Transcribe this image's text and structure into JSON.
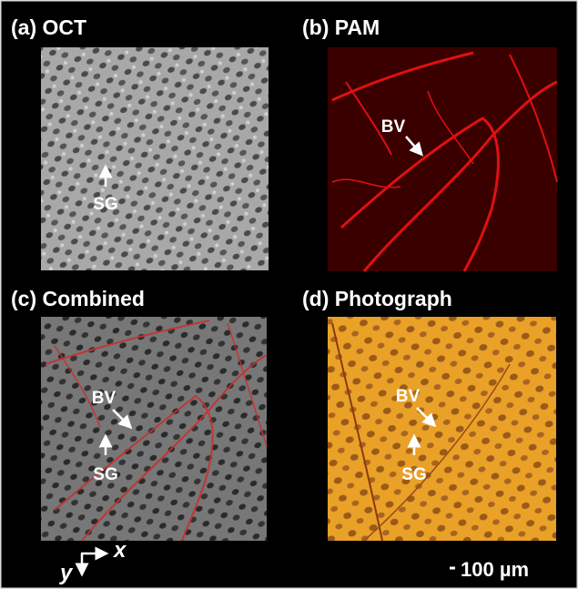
{
  "panels": [
    {
      "label": "(a) OCT",
      "annotations": [
        "SG"
      ]
    },
    {
      "label": "(b) PAM",
      "annotations": [
        "BV"
      ]
    },
    {
      "label": "(c) Combined",
      "annotations": [
        "BV",
        "SG"
      ]
    },
    {
      "label": "(d) Photograph",
      "annotations": [
        "BV",
        "SG"
      ]
    }
  ],
  "axes": {
    "x": "x",
    "y": "y"
  },
  "scale_bar": "100 µm"
}
